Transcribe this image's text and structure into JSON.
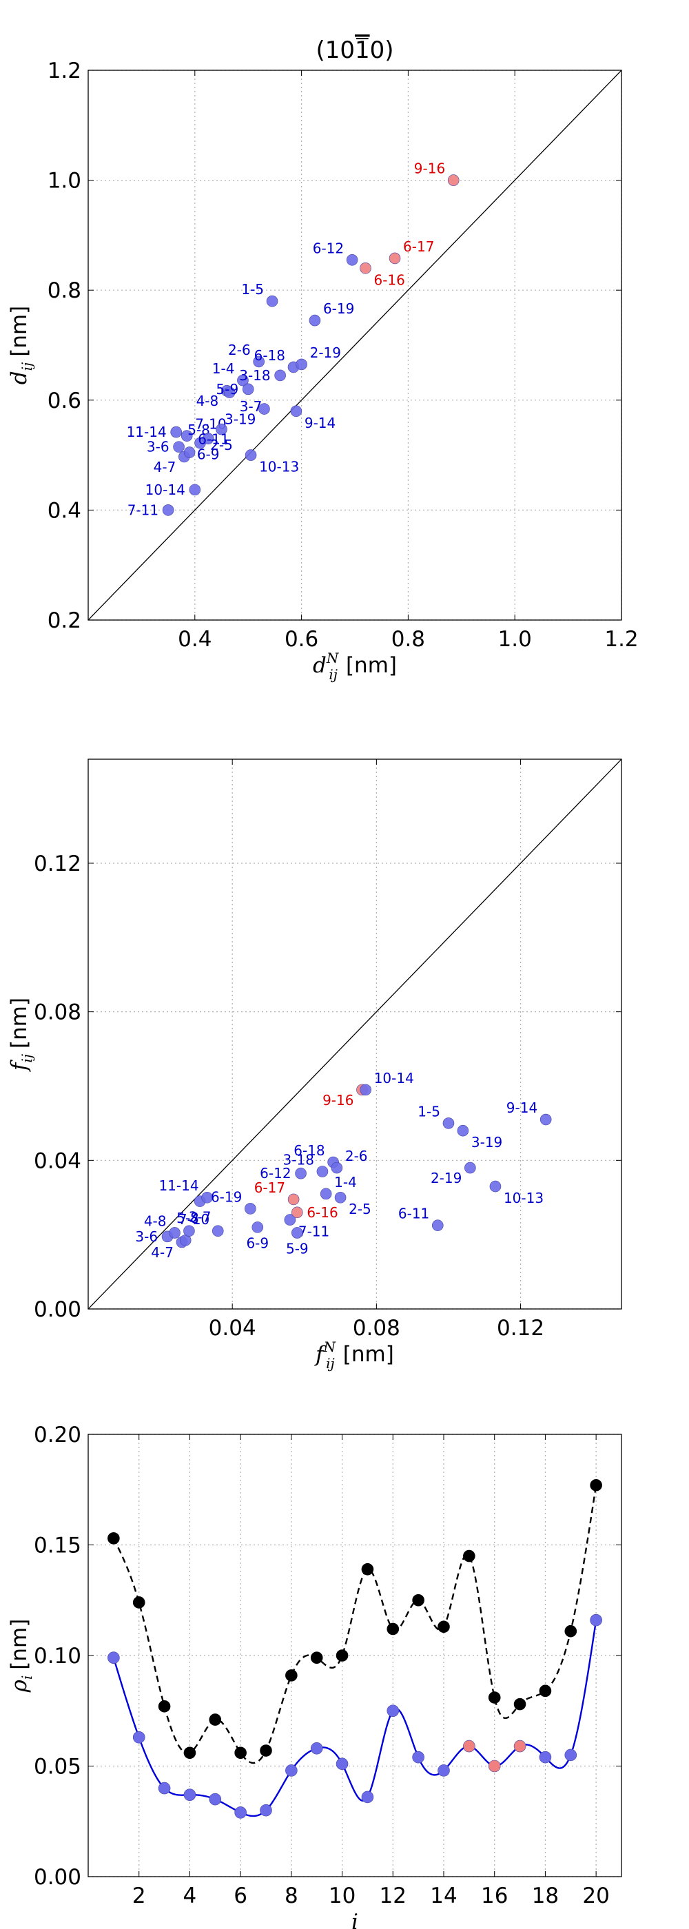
{
  "colors": {
    "blue": "#6b6be8",
    "blue_label": "#0000cc",
    "red": "#f08080",
    "red_label": "#dd0000",
    "black": "#000000",
    "blue_line": "#0000dd",
    "grid": "#b0b0b0"
  },
  "chart_data": [
    {
      "type": "scatter",
      "title": "(10Ī0)",
      "title_parts": [
        "(10",
        "1",
        "0)"
      ],
      "xlabel": "d",
      "xlabel_sub": "ij",
      "xlabel_sup": "N",
      "xlabel_unit": "[nm]",
      "ylabel": "d",
      "ylabel_sub": "ij",
      "ylabel_unit": "[nm]",
      "xlim": [
        0.2,
        1.2
      ],
      "ylim": [
        0.2,
        1.2
      ],
      "xticks": [
        "0.4",
        "0.6",
        "0.8",
        "1.0",
        "1.2"
      ],
      "xtick_values": [
        0.4,
        0.6,
        0.8,
        1.0,
        1.2
      ],
      "yticks": [
        "0.2",
        "0.4",
        "0.6",
        "0.8",
        "1.0",
        "1.2"
      ],
      "ytick_values": [
        0.2,
        0.4,
        0.6,
        0.8,
        1.0,
        1.2
      ],
      "diagonal": true,
      "grid": true,
      "points": [
        {
          "x": 0.35,
          "y": 0.4,
          "label": "7-11",
          "color": "blue",
          "lpos": "left"
        },
        {
          "x": 0.4,
          "y": 0.437,
          "label": "10-14",
          "color": "blue",
          "lpos": "left"
        },
        {
          "x": 0.38,
          "y": 0.497,
          "label": "4-7",
          "color": "blue",
          "lpos": "bl"
        },
        {
          "x": 0.39,
          "y": 0.505,
          "label": "",
          "color": "blue",
          "lpos": "none"
        },
        {
          "x": 0.37,
          "y": 0.515,
          "label": "3-6",
          "color": "blue",
          "lpos": "left"
        },
        {
          "x": 0.385,
          "y": 0.535,
          "label": "7-10",
          "color": "blue",
          "lpos": "tr"
        },
        {
          "x": 0.365,
          "y": 0.542,
          "label": "11-14",
          "color": "blue",
          "lpos": "left"
        },
        {
          "x": 0.41,
          "y": 0.522,
          "label": "5-8",
          "color": "blue",
          "lpos": "tl2"
        },
        {
          "x": 0.425,
          "y": 0.53,
          "label": "6-9",
          "color": "blue",
          "lpos": "below"
        },
        {
          "x": 0.45,
          "y": 0.547,
          "label": "2-5",
          "color": "blue",
          "lpos": "below"
        },
        {
          "x": 0.46,
          "y": 0.617,
          "label": "4-8",
          "color": "blue",
          "lpos": "bl"
        },
        {
          "x": 0.465,
          "y": 0.614,
          "label": "",
          "color": "blue",
          "lpos": "none"
        },
        {
          "x": 0.49,
          "y": 0.636,
          "label": "1-4",
          "color": "blue",
          "lpos": "tl"
        },
        {
          "x": 0.5,
          "y": 0.62,
          "label": "5-9",
          "color": "blue",
          "lpos": "left"
        },
        {
          "x": 0.505,
          "y": 0.5,
          "label": "10-13",
          "color": "blue",
          "lpos": "br"
        },
        {
          "x": 0.52,
          "y": 0.67,
          "label": "2-6",
          "color": "blue",
          "lpos": "tl"
        },
        {
          "x": 0.53,
          "y": 0.584,
          "label": "3-19",
          "color": "blue",
          "lpos": "bl"
        },
        {
          "x": 0.545,
          "y": 0.78,
          "label": "1-5",
          "color": "blue",
          "lpos": "tl"
        },
        {
          "x": 0.56,
          "y": 0.645,
          "label": "3-18",
          "color": "blue",
          "lpos": "left"
        },
        {
          "x": 0.585,
          "y": 0.66,
          "label": "6-18",
          "color": "blue",
          "lpos": "tl"
        },
        {
          "x": 0.59,
          "y": 0.58,
          "label": "9-14",
          "color": "blue",
          "lpos": "br"
        },
        {
          "x": 0.6,
          "y": 0.665,
          "label": "2-19",
          "color": "blue",
          "lpos": "tr"
        },
        {
          "x": 0.625,
          "y": 0.745,
          "label": "6-19",
          "color": "blue",
          "lpos": "tr"
        },
        {
          "x": 0.695,
          "y": 0.855,
          "label": "6-12",
          "color": "blue",
          "lpos": "tl"
        },
        {
          "x": 0.72,
          "y": 0.84,
          "label": "6-16",
          "color": "red",
          "lpos": "br"
        },
        {
          "x": 0.775,
          "y": 0.858,
          "label": "6-17",
          "color": "red",
          "lpos": "tr"
        },
        {
          "x": 0.885,
          "y": 1.0,
          "label": "9-16",
          "color": "red",
          "lpos": "tl"
        }
      ],
      "extra_labels": [
        {
          "text": "3-7",
          "x": 0.505,
          "y": 0.58,
          "color": "blue"
        },
        {
          "text": "6-11",
          "x": 0.435,
          "y": 0.52,
          "color": "blue"
        }
      ]
    },
    {
      "type": "scatter",
      "xlabel": "f",
      "xlabel_sub": "ij",
      "xlabel_sup": "N",
      "xlabel_unit": "[nm]",
      "ylabel": "f",
      "ylabel_sub": "ij",
      "ylabel_unit": "[nm]",
      "xlim": [
        0.0,
        0.148
      ],
      "ylim": [
        0.0,
        0.148
      ],
      "xticks": [
        "0.04",
        "0.08",
        "0.12"
      ],
      "xtick_values": [
        0.04,
        0.08,
        0.12
      ],
      "yticks": [
        "0.00",
        "0.04",
        "0.08",
        "0.12"
      ],
      "ytick_values": [
        0.0,
        0.04,
        0.08,
        0.12
      ],
      "diagonal": true,
      "grid": true,
      "points": [
        {
          "x": 0.022,
          "y": 0.0195,
          "label": "3-6",
          "color": "blue",
          "lpos": "left"
        },
        {
          "x": 0.024,
          "y": 0.0205,
          "label": "4-8",
          "color": "blue",
          "lpos": "tl"
        },
        {
          "x": 0.026,
          "y": 0.018,
          "label": "4-7",
          "color": "blue",
          "lpos": "bl"
        },
        {
          "x": 0.027,
          "y": 0.0185,
          "label": "",
          "color": "blue",
          "lpos": "none"
        },
        {
          "x": 0.028,
          "y": 0.021,
          "label": "5-8",
          "color": "blue",
          "lpos": "tl2"
        },
        {
          "x": 0.031,
          "y": 0.029,
          "label": "3-7",
          "color": "blue",
          "lpos": "below"
        },
        {
          "x": 0.033,
          "y": 0.03,
          "label": "11-14",
          "color": "blue",
          "lpos": "tl"
        },
        {
          "x": 0.036,
          "y": 0.021,
          "label": "7-10",
          "color": "blue",
          "lpos": "tl"
        },
        {
          "x": 0.045,
          "y": 0.027,
          "label": "6-19",
          "color": "blue",
          "lpos": "tl"
        },
        {
          "x": 0.047,
          "y": 0.022,
          "label": "6-9",
          "color": "blue",
          "lpos": "below"
        },
        {
          "x": 0.056,
          "y": 0.024,
          "label": "7-11",
          "color": "blue",
          "lpos": "br"
        },
        {
          "x": 0.057,
          "y": 0.0295,
          "label": "6-17",
          "color": "red",
          "lpos": "tl"
        },
        {
          "x": 0.058,
          "y": 0.0205,
          "label": "5-9",
          "color": "blue",
          "lpos": "below"
        },
        {
          "x": 0.058,
          "y": 0.026,
          "label": "6-16",
          "color": "red",
          "lpos": "right"
        },
        {
          "x": 0.059,
          "y": 0.0365,
          "label": "6-12",
          "color": "blue",
          "lpos": "left"
        },
        {
          "x": 0.065,
          "y": 0.037,
          "label": "3-18",
          "color": "blue",
          "lpos": "tl"
        },
        {
          "x": 0.066,
          "y": 0.031,
          "label": "1-4",
          "color": "blue",
          "lpos": "tr"
        },
        {
          "x": 0.068,
          "y": 0.0395,
          "label": "6-18",
          "color": "blue",
          "lpos": "tl"
        },
        {
          "x": 0.069,
          "y": 0.038,
          "label": "2-6",
          "color": "blue",
          "lpos": "tr"
        },
        {
          "x": 0.07,
          "y": 0.03,
          "label": "2-5",
          "color": "blue",
          "lpos": "br"
        },
        {
          "x": 0.076,
          "y": 0.059,
          "label": "9-16",
          "color": "red",
          "lpos": "bl"
        },
        {
          "x": 0.077,
          "y": 0.059,
          "label": "10-14",
          "color": "blue",
          "lpos": "tr"
        },
        {
          "x": 0.097,
          "y": 0.0225,
          "label": "6-11",
          "color": "blue",
          "lpos": "tl"
        },
        {
          "x": 0.1,
          "y": 0.05,
          "label": "1-5",
          "color": "blue",
          "lpos": "tl"
        },
        {
          "x": 0.104,
          "y": 0.048,
          "label": "3-19",
          "color": "blue",
          "lpos": "br"
        },
        {
          "x": 0.106,
          "y": 0.038,
          "label": "2-19",
          "color": "blue",
          "lpos": "bl"
        },
        {
          "x": 0.113,
          "y": 0.033,
          "label": "10-13",
          "color": "blue",
          "lpos": "br"
        },
        {
          "x": 0.127,
          "y": 0.051,
          "label": "9-14",
          "color": "blue",
          "lpos": "tl"
        }
      ]
    },
    {
      "type": "line",
      "xlabel": "i",
      "ylabel": "ρ",
      "ylabel_sub": "i",
      "ylabel_unit": "[nm]",
      "xlim": [
        0,
        21
      ],
      "ylim": [
        0.0,
        0.2
      ],
      "xticks": [
        "2",
        "4",
        "6",
        "8",
        "10",
        "12",
        "14",
        "16",
        "18",
        "20"
      ],
      "xtick_values": [
        2,
        4,
        6,
        8,
        10,
        12,
        14,
        16,
        18,
        20
      ],
      "yticks": [
        "0.00",
        "0.05",
        "0.10",
        "0.15",
        "0.20"
      ],
      "ytick_values": [
        0.0,
        0.05,
        0.1,
        0.15,
        0.2
      ],
      "grid": true,
      "x": [
        1,
        2,
        3,
        4,
        5,
        6,
        7,
        8,
        9,
        10,
        11,
        12,
        13,
        14,
        15,
        16,
        17,
        18,
        19,
        20
      ],
      "series": [
        {
          "name": "black-dashed",
          "style": "dashed",
          "color": "black",
          "values": [
            0.153,
            0.124,
            0.077,
            0.056,
            0.071,
            0.056,
            0.057,
            0.091,
            0.099,
            0.1,
            0.139,
            0.112,
            0.125,
            0.113,
            0.145,
            0.081,
            0.078,
            0.084,
            0.111,
            0.177
          ]
        },
        {
          "name": "blue-solid",
          "style": "solid",
          "color": "blue",
          "values": [
            0.099,
            0.063,
            0.04,
            0.037,
            0.035,
            0.029,
            0.03,
            0.048,
            0.058,
            0.051,
            0.036,
            0.075,
            0.054,
            0.048,
            0.059,
            0.05,
            0.059,
            0.054,
            0.055,
            0.116
          ],
          "red_indices": [
            14,
            15,
            16
          ]
        }
      ]
    }
  ]
}
